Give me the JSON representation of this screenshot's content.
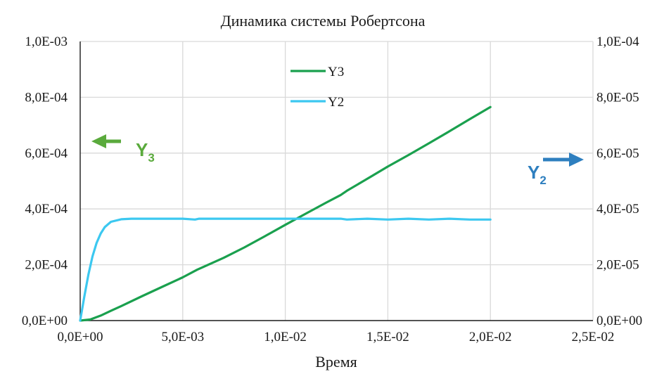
{
  "chart_data": {
    "type": "line",
    "title": "Динамика системы Робертсона",
    "xlabel": "Время",
    "ylabel": "",
    "y2label": "",
    "xlim": [
      0,
      0.025
    ],
    "ylim": [
      0,
      0.001
    ],
    "y2lim": [
      0,
      0.0001
    ],
    "x_ticks": [
      "0,0E+00",
      "5,0E-03",
      "1,0E-02",
      "1,5E-02",
      "2,0E-02",
      "2,5E-02"
    ],
    "y_ticks": [
      "0,0E+00",
      "2,0E-04",
      "4,0E-04",
      "6,0E-04",
      "8,0E-04",
      "1,0E-03"
    ],
    "y2_ticks": [
      "0,0E+00",
      "2,0E-05",
      "4,0E-05",
      "6,0E-05",
      "8,0E-05",
      "1,0E-04"
    ],
    "grid": true,
    "legend_position": "top-center",
    "series": [
      {
        "name": "Y3",
        "axis": "left",
        "color": "#1aa04e",
        "x": [
          0,
          0.0005,
          0.001,
          0.0015,
          0.002,
          0.003,
          0.004,
          0.005,
          0.0057,
          0.007,
          0.008,
          0.009,
          0.01,
          0.011,
          0.012,
          0.0127,
          0.013,
          0.014,
          0.015,
          0.016,
          0.017,
          0.018,
          0.019,
          0.02
        ],
        "y": [
          0,
          4e-06,
          1.8e-05,
          3.5e-05,
          5.2e-05,
          8.7e-05,
          0.000121,
          0.000155,
          0.000182,
          0.000225,
          0.000262,
          0.000302,
          0.000343,
          0.000383,
          0.000423,
          0.00045,
          0.000465,
          0.000508,
          0.000552,
          0.000593,
          0.000635,
          0.000678,
          0.000722,
          0.000765
        ]
      },
      {
        "name": "Y2",
        "axis": "right",
        "color": "#3cc8f0",
        "x": [
          0,
          0.0002,
          0.0004,
          0.0006,
          0.0008,
          0.001,
          0.0012,
          0.0015,
          0.002,
          0.0025,
          0.003,
          0.005,
          0.0056,
          0.0058,
          0.01,
          0.0127,
          0.013,
          0.014,
          0.015,
          0.016,
          0.017,
          0.018,
          0.019,
          0.02
        ],
        "y": [
          0,
          8.5e-06,
          1.65e-05,
          2.3e-05,
          2.78e-05,
          3.12e-05,
          3.35e-05,
          3.54e-05,
          3.63e-05,
          3.65e-05,
          3.65e-05,
          3.65e-05,
          3.62e-05,
          3.65e-05,
          3.65e-05,
          3.65e-05,
          3.62e-05,
          3.65e-05,
          3.62e-05,
          3.65e-05,
          3.62e-05,
          3.65e-05,
          3.62e-05,
          3.62e-05
        ]
      }
    ]
  },
  "annotations": {
    "left": {
      "label": "Y",
      "sub": "3",
      "color": "#5aaa3c",
      "arrow": "left"
    },
    "right": {
      "label": "Y",
      "sub": "2",
      "color": "#2e7fbf",
      "arrow": "right"
    }
  },
  "colors": {
    "grid": "#d9d9d9",
    "axis": "#1a1a1a"
  }
}
